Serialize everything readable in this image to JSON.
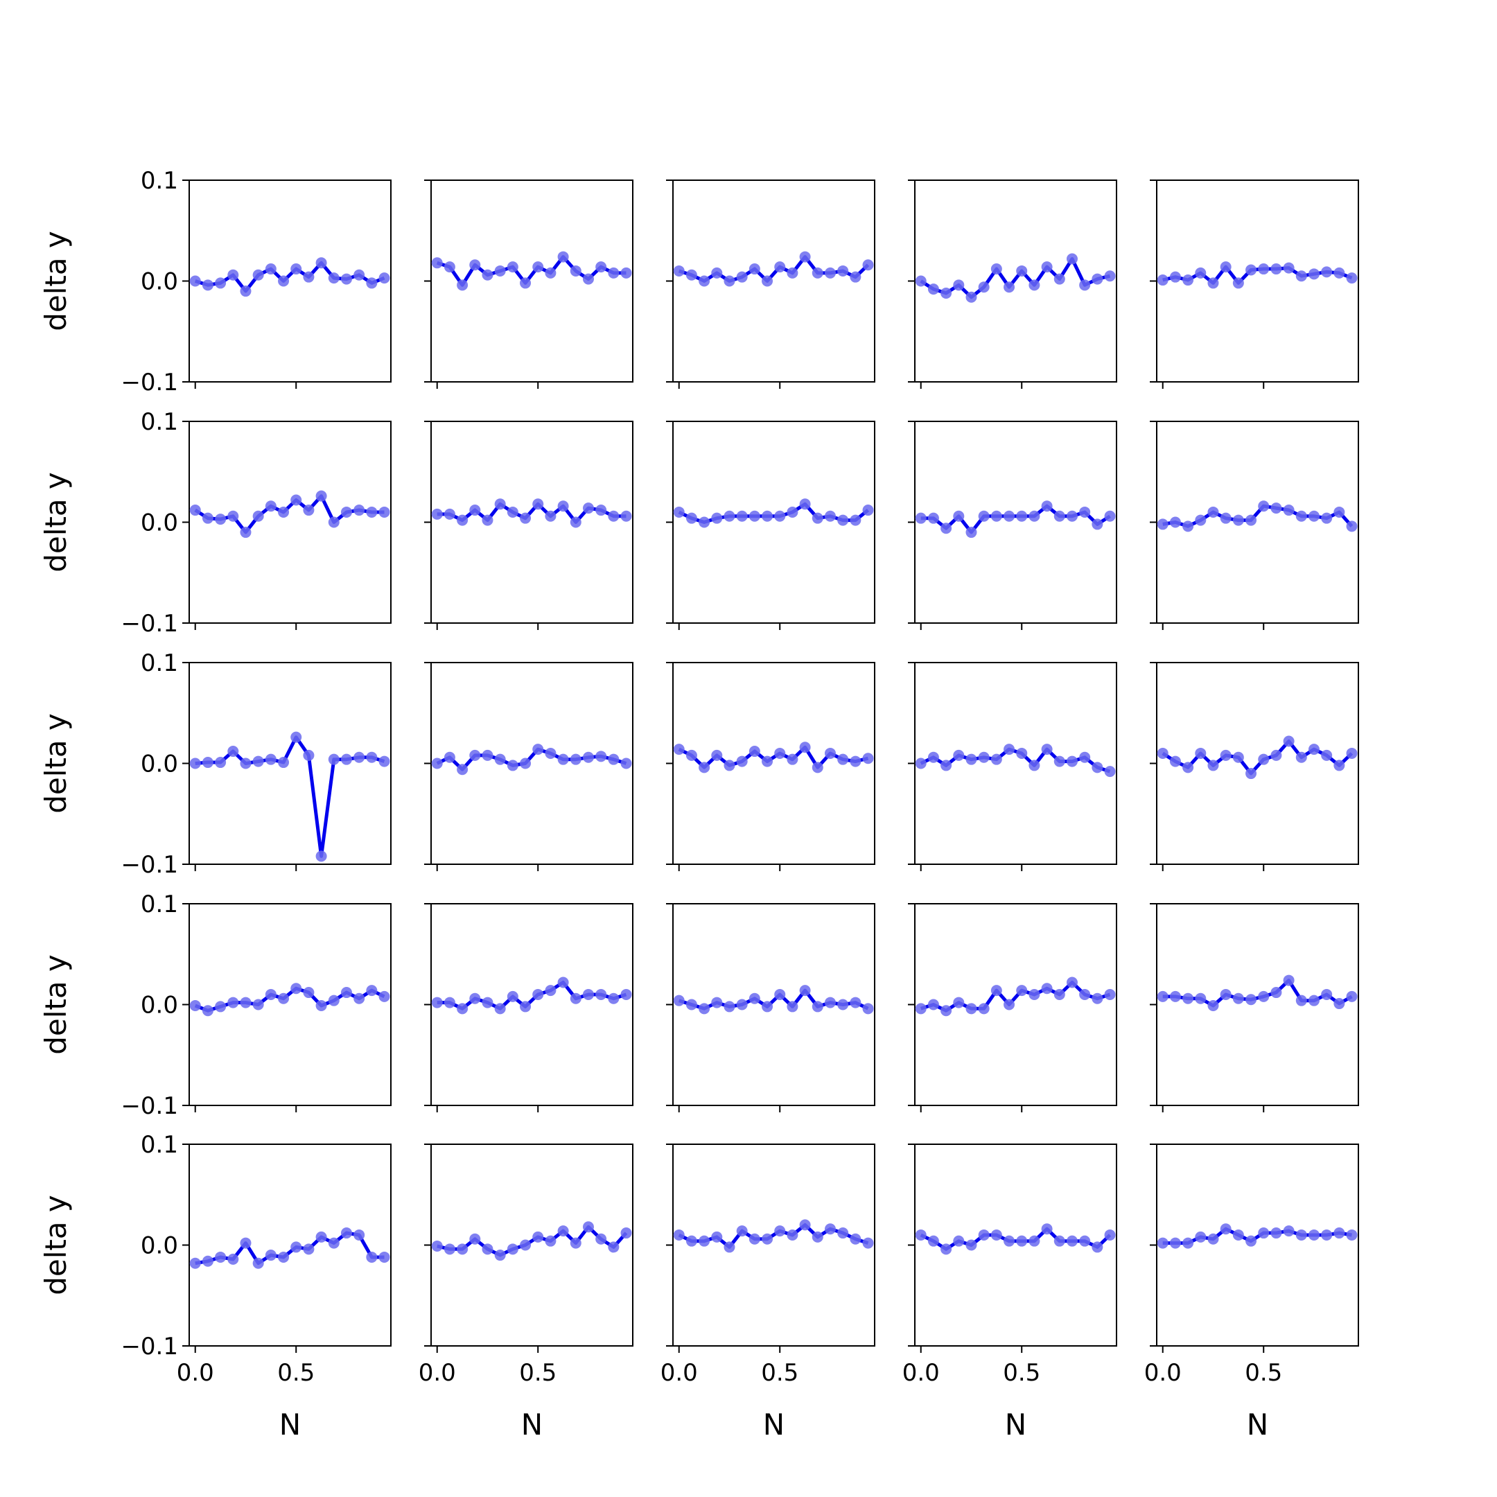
{
  "chart_data": {
    "type": "line",
    "layout": {
      "rows": 5,
      "cols": 5
    },
    "xlabel": "N",
    "ylabel": "delta y",
    "xlim": [
      -0.03,
      0.97
    ],
    "ylim": [
      -0.1,
      0.1
    ],
    "xticks": [
      0.0,
      0.5
    ],
    "xtick_labels": [
      "0.0",
      "0.5"
    ],
    "yticks": [
      0.1,
      0.0,
      -0.1
    ],
    "ytick_labels": [
      "0.1",
      "0.0",
      "−0.1"
    ],
    "grid": false,
    "line_color": "#0000ee",
    "marker_color": "#6a6aee",
    "x": [
      0.0,
      0.0625,
      0.125,
      0.1875,
      0.25,
      0.3125,
      0.375,
      0.4375,
      0.5,
      0.5625,
      0.625,
      0.6875,
      0.75,
      0.8125,
      0.875,
      0.9375
    ],
    "panels": [
      {
        "row": 1,
        "col": 1,
        "values": [
          0.0,
          -0.004,
          -0.002,
          0.006,
          -0.01,
          0.006,
          0.012,
          0.0,
          0.012,
          0.004,
          0.018,
          0.003,
          0.002,
          0.006,
          -0.002,
          0.003
        ]
      },
      {
        "row": 1,
        "col": 2,
        "values": [
          0.018,
          0.014,
          -0.004,
          0.016,
          0.006,
          0.01,
          0.014,
          -0.002,
          0.014,
          0.008,
          0.024,
          0.01,
          0.002,
          0.014,
          0.008,
          0.008
        ]
      },
      {
        "row": 1,
        "col": 3,
        "values": [
          0.01,
          0.006,
          0.0,
          0.008,
          0.0,
          0.004,
          0.012,
          0.0,
          0.014,
          0.008,
          0.024,
          0.008,
          0.008,
          0.01,
          0.004,
          0.016
        ]
      },
      {
        "row": 1,
        "col": 4,
        "values": [
          0.0,
          -0.008,
          -0.012,
          -0.004,
          -0.016,
          -0.006,
          0.012,
          -0.006,
          0.01,
          -0.004,
          0.014,
          0.002,
          0.022,
          -0.004,
          0.002,
          0.005
        ]
      },
      {
        "row": 1,
        "col": 5,
        "values": [
          0.001,
          0.004,
          0.001,
          0.008,
          -0.002,
          0.014,
          -0.002,
          0.011,
          0.012,
          0.012,
          0.013,
          0.005,
          0.007,
          0.009,
          0.008,
          0.003
        ]
      },
      {
        "row": 2,
        "col": 1,
        "values": [
          0.012,
          0.004,
          0.003,
          0.006,
          -0.01,
          0.006,
          0.016,
          0.01,
          0.022,
          0.012,
          0.026,
          0.0,
          0.01,
          0.012,
          0.01,
          0.01
        ]
      },
      {
        "row": 2,
        "col": 2,
        "values": [
          0.008,
          0.008,
          0.002,
          0.012,
          0.002,
          0.018,
          0.01,
          0.004,
          0.018,
          0.006,
          0.016,
          0.0,
          0.014,
          0.012,
          0.006,
          0.006
        ]
      },
      {
        "row": 2,
        "col": 3,
        "values": [
          0.01,
          0.004,
          0.0,
          0.004,
          0.006,
          0.006,
          0.006,
          0.006,
          0.006,
          0.01,
          0.018,
          0.004,
          0.006,
          0.002,
          0.002,
          0.012
        ]
      },
      {
        "row": 2,
        "col": 4,
        "values": [
          0.004,
          0.004,
          -0.006,
          0.006,
          -0.01,
          0.006,
          0.006,
          0.006,
          0.006,
          0.006,
          0.016,
          0.006,
          0.006,
          0.01,
          -0.002,
          0.006
        ]
      },
      {
        "row": 2,
        "col": 5,
        "values": [
          -0.002,
          0.0,
          -0.004,
          0.002,
          0.01,
          0.004,
          0.002,
          0.002,
          0.016,
          0.014,
          0.012,
          0.006,
          0.006,
          0.004,
          0.01,
          -0.004
        ]
      },
      {
        "row": 3,
        "col": 1,
        "values": [
          0.0,
          0.001,
          0.001,
          0.012,
          0.0,
          0.002,
          0.004,
          0.001,
          0.026,
          0.008,
          -0.092,
          0.004,
          0.004,
          0.006,
          0.006,
          0.002
        ]
      },
      {
        "row": 3,
        "col": 2,
        "values": [
          0.0,
          0.006,
          -0.006,
          0.008,
          0.008,
          0.004,
          -0.002,
          0.0,
          0.014,
          0.01,
          0.004,
          0.004,
          0.006,
          0.007,
          0.004,
          0.0
        ]
      },
      {
        "row": 3,
        "col": 3,
        "values": [
          0.014,
          0.008,
          -0.004,
          0.008,
          -0.002,
          0.002,
          0.012,
          0.002,
          0.01,
          0.004,
          0.016,
          -0.004,
          0.01,
          0.004,
          0.002,
          0.005
        ]
      },
      {
        "row": 3,
        "col": 4,
        "values": [
          0.0,
          0.006,
          -0.002,
          0.008,
          0.004,
          0.006,
          0.004,
          0.014,
          0.01,
          -0.002,
          0.014,
          0.002,
          0.002,
          0.006,
          -0.004,
          -0.008
        ]
      },
      {
        "row": 3,
        "col": 5,
        "values": [
          0.01,
          0.002,
          -0.004,
          0.01,
          -0.002,
          0.008,
          0.006,
          -0.01,
          0.004,
          0.008,
          0.022,
          0.006,
          0.014,
          0.008,
          -0.002,
          0.01
        ]
      },
      {
        "row": 4,
        "col": 1,
        "values": [
          -0.001,
          -0.006,
          -0.002,
          0.002,
          0.002,
          0.0,
          0.01,
          0.006,
          0.016,
          0.012,
          -0.001,
          0.004,
          0.012,
          0.006,
          0.014,
          0.008
        ]
      },
      {
        "row": 4,
        "col": 2,
        "values": [
          0.002,
          0.002,
          -0.004,
          0.006,
          0.002,
          -0.004,
          0.008,
          -0.002,
          0.01,
          0.014,
          0.022,
          0.006,
          0.01,
          0.01,
          0.006,
          0.01
        ]
      },
      {
        "row": 4,
        "col": 3,
        "values": [
          0.004,
          0.0,
          -0.004,
          0.002,
          -0.002,
          0.0,
          0.006,
          -0.002,
          0.01,
          -0.002,
          0.014,
          -0.002,
          0.002,
          0.0,
          0.002,
          -0.004
        ]
      },
      {
        "row": 4,
        "col": 4,
        "values": [
          -0.004,
          0.0,
          -0.006,
          0.002,
          -0.004,
          -0.004,
          0.014,
          0.0,
          0.014,
          0.01,
          0.016,
          0.01,
          0.022,
          0.01,
          0.006,
          0.01
        ]
      },
      {
        "row": 4,
        "col": 5,
        "values": [
          0.008,
          0.008,
          0.006,
          0.006,
          -0.001,
          0.01,
          0.006,
          0.005,
          0.008,
          0.012,
          0.024,
          0.004,
          0.004,
          0.01,
          0.001,
          0.008
        ]
      },
      {
        "row": 5,
        "col": 1,
        "values": [
          -0.018,
          -0.016,
          -0.012,
          -0.014,
          0.002,
          -0.018,
          -0.01,
          -0.012,
          -0.002,
          -0.004,
          0.008,
          0.002,
          0.012,
          0.01,
          -0.012,
          -0.012
        ]
      },
      {
        "row": 5,
        "col": 2,
        "values": [
          -0.001,
          -0.004,
          -0.004,
          0.006,
          -0.004,
          -0.01,
          -0.004,
          0.0,
          0.008,
          0.004,
          0.014,
          0.002,
          0.018,
          0.006,
          -0.002,
          0.012
        ]
      },
      {
        "row": 5,
        "col": 3,
        "values": [
          0.01,
          0.004,
          0.004,
          0.008,
          -0.002,
          0.014,
          0.006,
          0.006,
          0.014,
          0.01,
          0.02,
          0.008,
          0.016,
          0.012,
          0.006,
          0.002
        ]
      },
      {
        "row": 5,
        "col": 4,
        "values": [
          0.01,
          0.004,
          -0.004,
          0.004,
          0.0,
          0.01,
          0.01,
          0.004,
          0.004,
          0.004,
          0.016,
          0.004,
          0.004,
          0.004,
          -0.002,
          0.01
        ]
      },
      {
        "row": 5,
        "col": 5,
        "values": [
          0.002,
          0.002,
          0.002,
          0.008,
          0.006,
          0.016,
          0.01,
          0.004,
          0.012,
          0.012,
          0.014,
          0.01,
          0.01,
          0.01,
          0.012,
          0.01
        ]
      }
    ]
  }
}
